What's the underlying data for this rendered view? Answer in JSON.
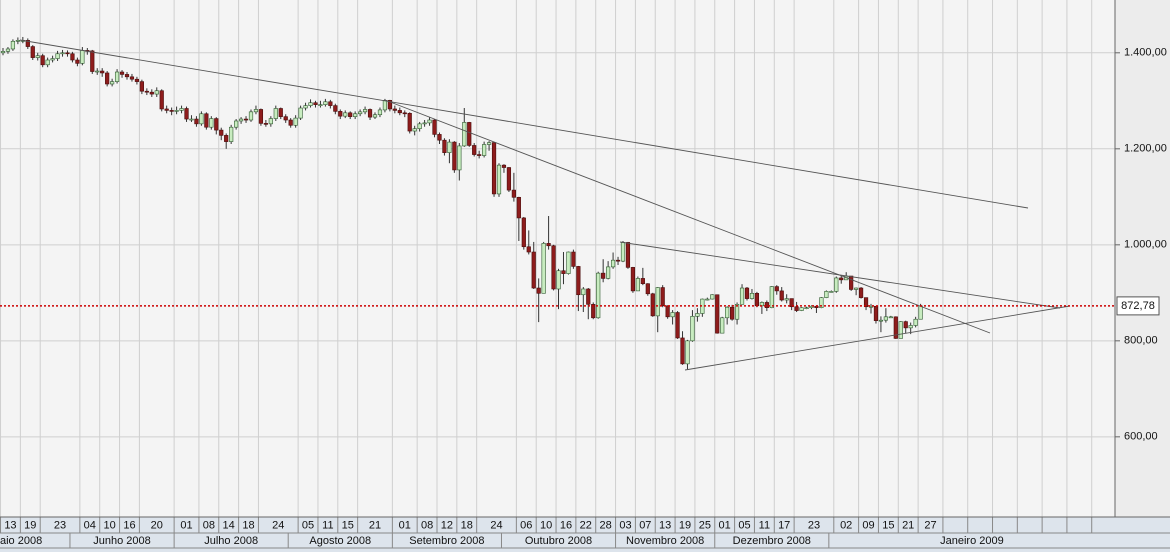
{
  "chart_data": {
    "type": "candlestick",
    "x": [
      "2008-05-13",
      "2008-05-14",
      "2008-05-15",
      "2008-05-16",
      "2008-05-19",
      "2008-05-20",
      "2008-05-21",
      "2008-05-22",
      "2008-05-23",
      "2008-05-26",
      "2008-05-27",
      "2008-05-28",
      "2008-05-29",
      "2008-05-30",
      "2008-06-02",
      "2008-06-03",
      "2008-06-04",
      "2008-06-05",
      "2008-06-06",
      "2008-06-09",
      "2008-06-10",
      "2008-06-11",
      "2008-06-12",
      "2008-06-13",
      "2008-06-16",
      "2008-06-17",
      "2008-06-18",
      "2008-06-19",
      "2008-06-20",
      "2008-06-23",
      "2008-06-24",
      "2008-06-25",
      "2008-06-26",
      "2008-06-27",
      "2008-06-30",
      "2008-07-01",
      "2008-07-02",
      "2008-07-03",
      "2008-07-04",
      "2008-07-07",
      "2008-07-08",
      "2008-07-09",
      "2008-07-10",
      "2008-07-11",
      "2008-07-14",
      "2008-07-15",
      "2008-07-16",
      "2008-07-17",
      "2008-07-18",
      "2008-07-21",
      "2008-07-22",
      "2008-07-23",
      "2008-07-24",
      "2008-07-25",
      "2008-07-28",
      "2008-07-29",
      "2008-07-30",
      "2008-07-31",
      "2008-08-01",
      "2008-08-04",
      "2008-08-05",
      "2008-08-06",
      "2008-08-07",
      "2008-08-08",
      "2008-08-11",
      "2008-08-12",
      "2008-08-13",
      "2008-08-14",
      "2008-08-15",
      "2008-08-18",
      "2008-08-19",
      "2008-08-20",
      "2008-08-21",
      "2008-08-22",
      "2008-08-25",
      "2008-08-26",
      "2008-08-27",
      "2008-08-28",
      "2008-08-29",
      "2008-09-01",
      "2008-09-02",
      "2008-09-03",
      "2008-09-04",
      "2008-09-05",
      "2008-09-08",
      "2008-09-09",
      "2008-09-10",
      "2008-09-11",
      "2008-09-12",
      "2008-09-15",
      "2008-09-16",
      "2008-09-17",
      "2008-09-18",
      "2008-09-19",
      "2008-09-22",
      "2008-09-23",
      "2008-09-24",
      "2008-09-25",
      "2008-09-26",
      "2008-09-29",
      "2008-09-30",
      "2008-10-01",
      "2008-10-02",
      "2008-10-03",
      "2008-10-06",
      "2008-10-07",
      "2008-10-08",
      "2008-10-09",
      "2008-10-10",
      "2008-10-13",
      "2008-10-14",
      "2008-10-15",
      "2008-10-16",
      "2008-10-17",
      "2008-10-20",
      "2008-10-21",
      "2008-10-22",
      "2008-10-23",
      "2008-10-24",
      "2008-10-27",
      "2008-10-28",
      "2008-10-29",
      "2008-10-30",
      "2008-10-31",
      "2008-11-03",
      "2008-11-04",
      "2008-11-05",
      "2008-11-06",
      "2008-11-07",
      "2008-11-10",
      "2008-11-11",
      "2008-11-12",
      "2008-11-13",
      "2008-11-14",
      "2008-11-17",
      "2008-11-18",
      "2008-11-19",
      "2008-11-20",
      "2008-11-21",
      "2008-11-24",
      "2008-11-25",
      "2008-11-26",
      "2008-11-27",
      "2008-11-28",
      "2008-12-01",
      "2008-12-02",
      "2008-12-03",
      "2008-12-04",
      "2008-12-05",
      "2008-12-08",
      "2008-12-09",
      "2008-12-10",
      "2008-12-11",
      "2008-12-12",
      "2008-12-15",
      "2008-12-16",
      "2008-12-17",
      "2008-12-18",
      "2008-12-19",
      "2008-12-22",
      "2008-12-23",
      "2008-12-24",
      "2008-12-25",
      "2008-12-26",
      "2008-12-29",
      "2008-12-30",
      "2008-12-31",
      "2009-01-01",
      "2009-01-02",
      "2009-01-05",
      "2009-01-06",
      "2009-01-07",
      "2009-01-08",
      "2009-01-09",
      "2009-01-12",
      "2009-01-13",
      "2009-01-14",
      "2009-01-15",
      "2009-01-16",
      "2009-01-19",
      "2009-01-20",
      "2009-01-21",
      "2009-01-22",
      "2009-01-23",
      "2009-01-26",
      "2009-01-27"
    ],
    "open": [
      1400,
      1403,
      1408,
      1424,
      1426,
      1426,
      1413,
      1390,
      1394,
      1375,
      1385,
      1388,
      1398,
      1400,
      1398,
      1385,
      1378,
      1405,
      1404,
      1361,
      1362,
      1358,
      1335,
      1340,
      1360,
      1355,
      1350,
      1345,
      1340,
      1320,
      1318,
      1314,
      1321,
      1283,
      1280,
      1278,
      1280,
      1284,
      1262,
      1262,
      1252,
      1273,
      1245,
      1263,
      1239,
      1228,
      1215,
      1245,
      1258,
      1262,
      1260,
      1277,
      1282,
      1253,
      1252,
      1263,
      1284,
      1267,
      1260,
      1249,
      1264,
      1285,
      1290,
      1296,
      1292,
      1292,
      1298,
      1290,
      1278,
      1268,
      1275,
      1267,
      1273,
      1277,
      1282,
      1266,
      1271,
      1281,
      1301,
      1283,
      1280,
      1275,
      1274,
      1237,
      1242,
      1252,
      1254,
      1260,
      1230,
      1218,
      1192,
      1214,
      1156,
      1206,
      1255,
      1207,
      1188,
      1186,
      1209,
      1213,
      1106,
      1166,
      1161,
      1114,
      1099,
      1056,
      996,
      985,
      910,
      899,
      1003,
      998,
      908,
      946,
      940,
      985,
      955,
      896,
      908,
      876,
      848,
      941,
      930,
      954,
      968,
      966,
      1005,
      953,
      904,
      930,
      919,
      898,
      852,
      911,
      873,
      850,
      859,
      806,
      752,
      800,
      851,
      857,
      887,
      887,
      896,
      816,
      848,
      870,
      845,
      876,
      910,
      888,
      899,
      873,
      880,
      869,
      913,
      904,
      885,
      888,
      871,
      863,
      869,
      869,
      872,
      869,
      890,
      903,
      903,
      931,
      927,
      935,
      907,
      910,
      890,
      871,
      872,
      842,
      843,
      850,
      850,
      805,
      840,
      827,
      832,
      845
    ],
    "high": [
      1410,
      1412,
      1428,
      1432,
      1433,
      1430,
      1416,
      1400,
      1398,
      1390,
      1394,
      1404,
      1406,
      1405,
      1402,
      1390,
      1412,
      1410,
      1406,
      1368,
      1368,
      1362,
      1346,
      1366,
      1364,
      1360,
      1356,
      1350,
      1344,
      1326,
      1324,
      1328,
      1324,
      1290,
      1286,
      1288,
      1290,
      1288,
      1270,
      1268,
      1278,
      1276,
      1268,
      1266,
      1244,
      1232,
      1250,
      1262,
      1266,
      1268,
      1282,
      1290,
      1284,
      1260,
      1268,
      1290,
      1286,
      1272,
      1264,
      1270,
      1290,
      1296,
      1303,
      1300,
      1300,
      1304,
      1302,
      1294,
      1282,
      1280,
      1278,
      1278,
      1282,
      1288,
      1284,
      1276,
      1286,
      1304,
      1302,
      1290,
      1286,
      1280,
      1276,
      1248,
      1256,
      1260,
      1266,
      1262,
      1234,
      1222,
      1220,
      1216,
      1212,
      1285,
      1256,
      1212,
      1196,
      1215,
      1216,
      1214,
      1170,
      1168,
      1162,
      1150,
      1100,
      1058,
      1030,
      1006,
      930,
      1006,
      1060,
      1000,
      950,
      985,
      986,
      990,
      956,
      912,
      910,
      880,
      944,
      970,
      966,
      984,
      975,
      1008,
      1006,
      954,
      934,
      952,
      920,
      900,
      912,
      916,
      874,
      864,
      862,
      820,
      802,
      864,
      868,
      888,
      890,
      897,
      896,
      850,
      872,
      875,
      880,
      918,
      912,
      908,
      902,
      882,
      884,
      914,
      916,
      912,
      897,
      888,
      881,
      870,
      871,
      874,
      874,
      891,
      905,
      905,
      934,
      936,
      943,
      935,
      911,
      912,
      890,
      877,
      872,
      851,
      868,
      852,
      851,
      841,
      842,
      838,
      850,
      877
    ],
    "low": [
      1395,
      1398,
      1404,
      1418,
      1420,
      1408,
      1385,
      1384,
      1370,
      1370,
      1380,
      1383,
      1392,
      1392,
      1380,
      1372,
      1374,
      1396,
      1356,
      1354,
      1350,
      1330,
      1330,
      1336,
      1348,
      1344,
      1340,
      1334,
      1314,
      1312,
      1308,
      1308,
      1278,
      1274,
      1270,
      1272,
      1274,
      1256,
      1256,
      1246,
      1248,
      1240,
      1240,
      1230,
      1218,
      1200,
      1210,
      1240,
      1252,
      1254,
      1256,
      1272,
      1248,
      1246,
      1246,
      1258,
      1262,
      1254,
      1244,
      1244,
      1260,
      1280,
      1286,
      1286,
      1286,
      1288,
      1284,
      1272,
      1262,
      1264,
      1262,
      1262,
      1268,
      1272,
      1260,
      1262,
      1266,
      1276,
      1278,
      1274,
      1270,
      1266,
      1232,
      1228,
      1236,
      1246,
      1248,
      1224,
      1210,
      1186,
      1170,
      1150,
      1134,
      1204,
      1204,
      1184,
      1180,
      1182,
      1196,
      1100,
      1100,
      1150,
      1110,
      1090,
      1008,
      990,
      980,
      908,
      839,
      899,
      990,
      905,
      866,
      918,
      938,
      950,
      862,
      860,
      845,
      845,
      846,
      922,
      928,
      950,
      958,
      964,
      950,
      900,
      904,
      916,
      894,
      850,
      818,
      870,
      846,
      834,
      804,
      750,
      741,
      798,
      840,
      850,
      884,
      886,
      815,
      818,
      834,
      842,
      834,
      876,
      884,
      886,
      870,
      856,
      862,
      868,
      896,
      882,
      878,
      864,
      860,
      862,
      866,
      866,
      858,
      868,
      889,
      901,
      900,
      919,
      927,
      904,
      895,
      888,
      864,
      857,
      836,
      818,
      838,
      848,
      804,
      805,
      816,
      814,
      828,
      845
    ],
    "close": [
      1403,
      1408,
      1424,
      1426,
      1426,
      1413,
      1390,
      1394,
      1375,
      1385,
      1388,
      1398,
      1400,
      1398,
      1385,
      1378,
      1405,
      1404,
      1361,
      1362,
      1358,
      1335,
      1340,
      1360,
      1355,
      1350,
      1345,
      1340,
      1320,
      1318,
      1314,
      1321,
      1283,
      1280,
      1278,
      1280,
      1284,
      1262,
      1262,
      1252,
      1273,
      1245,
      1263,
      1239,
      1228,
      1215,
      1245,
      1258,
      1262,
      1260,
      1277,
      1282,
      1253,
      1252,
      1263,
      1284,
      1267,
      1260,
      1249,
      1264,
      1285,
      1290,
      1296,
      1292,
      1292,
      1298,
      1290,
      1278,
      1268,
      1275,
      1267,
      1273,
      1277,
      1282,
      1266,
      1271,
      1281,
      1301,
      1283,
      1280,
      1275,
      1274,
      1237,
      1242,
      1252,
      1254,
      1260,
      1230,
      1218,
      1192,
      1214,
      1156,
      1206,
      1255,
      1207,
      1188,
      1186,
      1209,
      1213,
      1106,
      1166,
      1161,
      1114,
      1099,
      1056,
      996,
      985,
      910,
      899,
      1003,
      998,
      908,
      946,
      940,
      985,
      955,
      896,
      908,
      876,
      848,
      941,
      930,
      954,
      968,
      966,
      1005,
      953,
      904,
      930,
      919,
      898,
      852,
      911,
      873,
      850,
      859,
      806,
      752,
      800,
      851,
      857,
      887,
      887,
      896,
      816,
      848,
      870,
      845,
      876,
      910,
      888,
      899,
      873,
      880,
      869,
      913,
      904,
      885,
      888,
      871,
      863,
      869,
      869,
      872,
      869,
      890,
      903,
      903,
      931,
      927,
      935,
      907,
      910,
      890,
      871,
      872,
      842,
      843,
      850,
      850,
      805,
      840,
      827,
      832,
      845,
      872.78
    ],
    "up_color": "#c8ecc0",
    "down_color": "#8e1c1c",
    "ylim": [
      433,
      1510
    ],
    "yticks": [
      {
        "value": 600,
        "label": "600,00"
      },
      {
        "value": 800,
        "label": "800,00"
      },
      {
        "value": 1000,
        "label": "1.000,00"
      },
      {
        "value": 1200,
        "label": "1.200,00"
      },
      {
        "value": 1400,
        "label": "1.400,00"
      }
    ],
    "xticks": [
      {
        "value": "2008-05-13",
        "label": "13"
      },
      {
        "value": "2008-05-19",
        "label": "19"
      },
      {
        "value": "2008-05-23",
        "label": "23"
      },
      {
        "value": "2008-06-04",
        "label": "04"
      },
      {
        "value": "2008-06-10",
        "label": "10"
      },
      {
        "value": "2008-06-16",
        "label": "16"
      },
      {
        "value": "2008-06-20",
        "label": "20"
      },
      {
        "value": "2008-07-01",
        "label": "01"
      },
      {
        "value": "2008-07-08",
        "label": "08"
      },
      {
        "value": "2008-07-14",
        "label": "14"
      },
      {
        "value": "2008-07-18",
        "label": "18"
      },
      {
        "value": "2008-07-24",
        "label": "24"
      },
      {
        "value": "2008-08-05",
        "label": "05"
      },
      {
        "value": "2008-08-11",
        "label": "11"
      },
      {
        "value": "2008-08-15",
        "label": "15"
      },
      {
        "value": "2008-08-21",
        "label": "21"
      },
      {
        "value": "2008-09-01",
        "label": "01"
      },
      {
        "value": "2008-09-08",
        "label": "08"
      },
      {
        "value": "2008-09-12",
        "label": "12"
      },
      {
        "value": "2008-09-18",
        "label": "18"
      },
      {
        "value": "2008-09-24",
        "label": "24"
      },
      {
        "value": "2008-10-06",
        "label": "06"
      },
      {
        "value": "2008-10-10",
        "label": "10"
      },
      {
        "value": "2008-10-16",
        "label": "16"
      },
      {
        "value": "2008-10-22",
        "label": "22"
      },
      {
        "value": "2008-10-28",
        "label": "28"
      },
      {
        "value": "2008-11-03",
        "label": "03"
      },
      {
        "value": "2008-11-07",
        "label": "07"
      },
      {
        "value": "2008-11-13",
        "label": "13"
      },
      {
        "value": "2008-11-19",
        "label": "19"
      },
      {
        "value": "2008-11-25",
        "label": "25"
      },
      {
        "value": "2008-12-01",
        "label": "01"
      },
      {
        "value": "2008-12-05",
        "label": "05"
      },
      {
        "value": "2008-12-11",
        "label": "11"
      },
      {
        "value": "2008-12-17",
        "label": "17"
      },
      {
        "value": "2008-12-23",
        "label": "23"
      },
      {
        "value": "2009-01-02",
        "label": "02"
      },
      {
        "value": "2009-01-09",
        "label": "09"
      },
      {
        "value": "2009-01-15",
        "label": "15"
      },
      {
        "value": "2009-01-21",
        "label": "21"
      },
      {
        "value": "2009-01-27",
        "label": "27"
      }
    ],
    "month_labels": [
      {
        "value": "2008-05-13",
        "label": "aio 2008"
      },
      {
        "value": "2008-06-02",
        "label": "Junho 2008"
      },
      {
        "value": "2008-07-01",
        "label": "Julho 2008"
      },
      {
        "value": "2008-08-01",
        "label": "Agosto 2008"
      },
      {
        "value": "2008-09-01",
        "label": "Setembro 2008"
      },
      {
        "value": "2008-10-01",
        "label": "Outubro 2008"
      },
      {
        "value": "2008-11-03",
        "label": "Novembro 2008"
      },
      {
        "value": "2008-12-01",
        "label": "Dezembro 2008"
      },
      {
        "value": "2009-01-01",
        "label": "Janeiro 2009"
      }
    ],
    "last_price": {
      "value": 872.78,
      "label": "872,78"
    },
    "last_price_color": "#cc0000",
    "grid": true
  }
}
